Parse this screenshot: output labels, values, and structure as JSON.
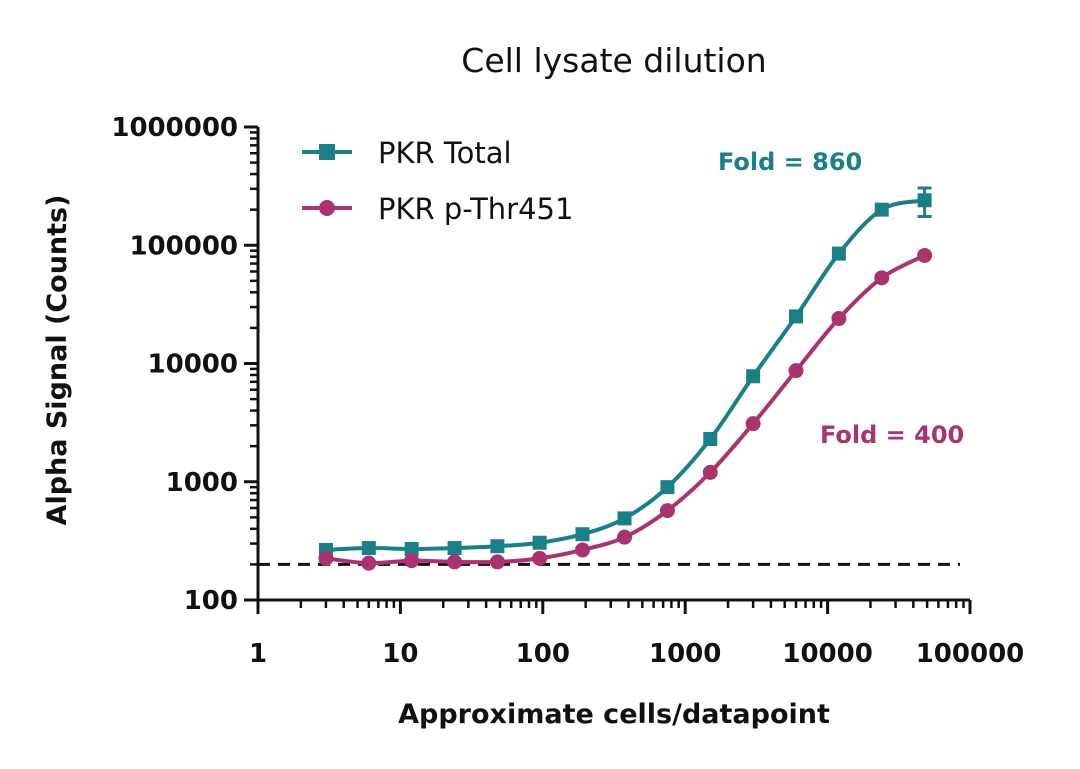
{
  "chart_data": {
    "type": "line",
    "title": "Cell lysate dilution",
    "xlabel": "Approximate cells/datapoint",
    "ylabel": "Alpha Signal (Counts)",
    "x_scale": "log",
    "y_scale": "log",
    "xlim": [
      1,
      100000
    ],
    "ylim": [
      100,
      1000000
    ],
    "x_ticks": [
      1,
      10,
      100,
      1000,
      10000,
      100000
    ],
    "x_tick_labels": [
      "1",
      "10",
      "100",
      "1000",
      "10000",
      "100000"
    ],
    "y_ticks": [
      100,
      1000,
      10000,
      100000,
      1000000
    ],
    "y_tick_labels": [
      "100",
      "1000",
      "10000",
      "100000",
      "1000000"
    ],
    "grid": false,
    "legend_position": "top-left",
    "reference_line": {
      "style": "dashed",
      "y": 200,
      "color": "#111111"
    },
    "series": [
      {
        "name": "PKR Total",
        "marker": "square",
        "color": "#1a7f86",
        "x": [
          3,
          6,
          12,
          24,
          48,
          95,
          190,
          375,
          750,
          1500,
          3000,
          6000,
          12000,
          24000,
          48000
        ],
        "y": [
          265,
          275,
          270,
          275,
          285,
          305,
          360,
          490,
          900,
          2300,
          7800,
          25000,
          85000,
          200000,
          240000
        ],
        "error_y": [
          0,
          0,
          0,
          0,
          0,
          0,
          0,
          0,
          0,
          0,
          0,
          0,
          0,
          0,
          65000
        ]
      },
      {
        "name": "PKR p-Thr451",
        "marker": "circle",
        "color": "#a8336f",
        "x": [
          3,
          6,
          12,
          24,
          48,
          95,
          190,
          375,
          750,
          1500,
          3000,
          6000,
          12000,
          24000,
          48000
        ],
        "y": [
          225,
          205,
          215,
          210,
          210,
          225,
          265,
          340,
          570,
          1200,
          3100,
          8700,
          24000,
          53000,
          82000
        ],
        "error_y": [
          0,
          0,
          0,
          0,
          0,
          0,
          0,
          0,
          0,
          0,
          0,
          0,
          0,
          0,
          0
        ]
      }
    ],
    "annotations": [
      {
        "text": "Fold = 860",
        "color": "#1a7f86"
      },
      {
        "text": "Fold = 400",
        "color": "#a8336f"
      }
    ]
  }
}
